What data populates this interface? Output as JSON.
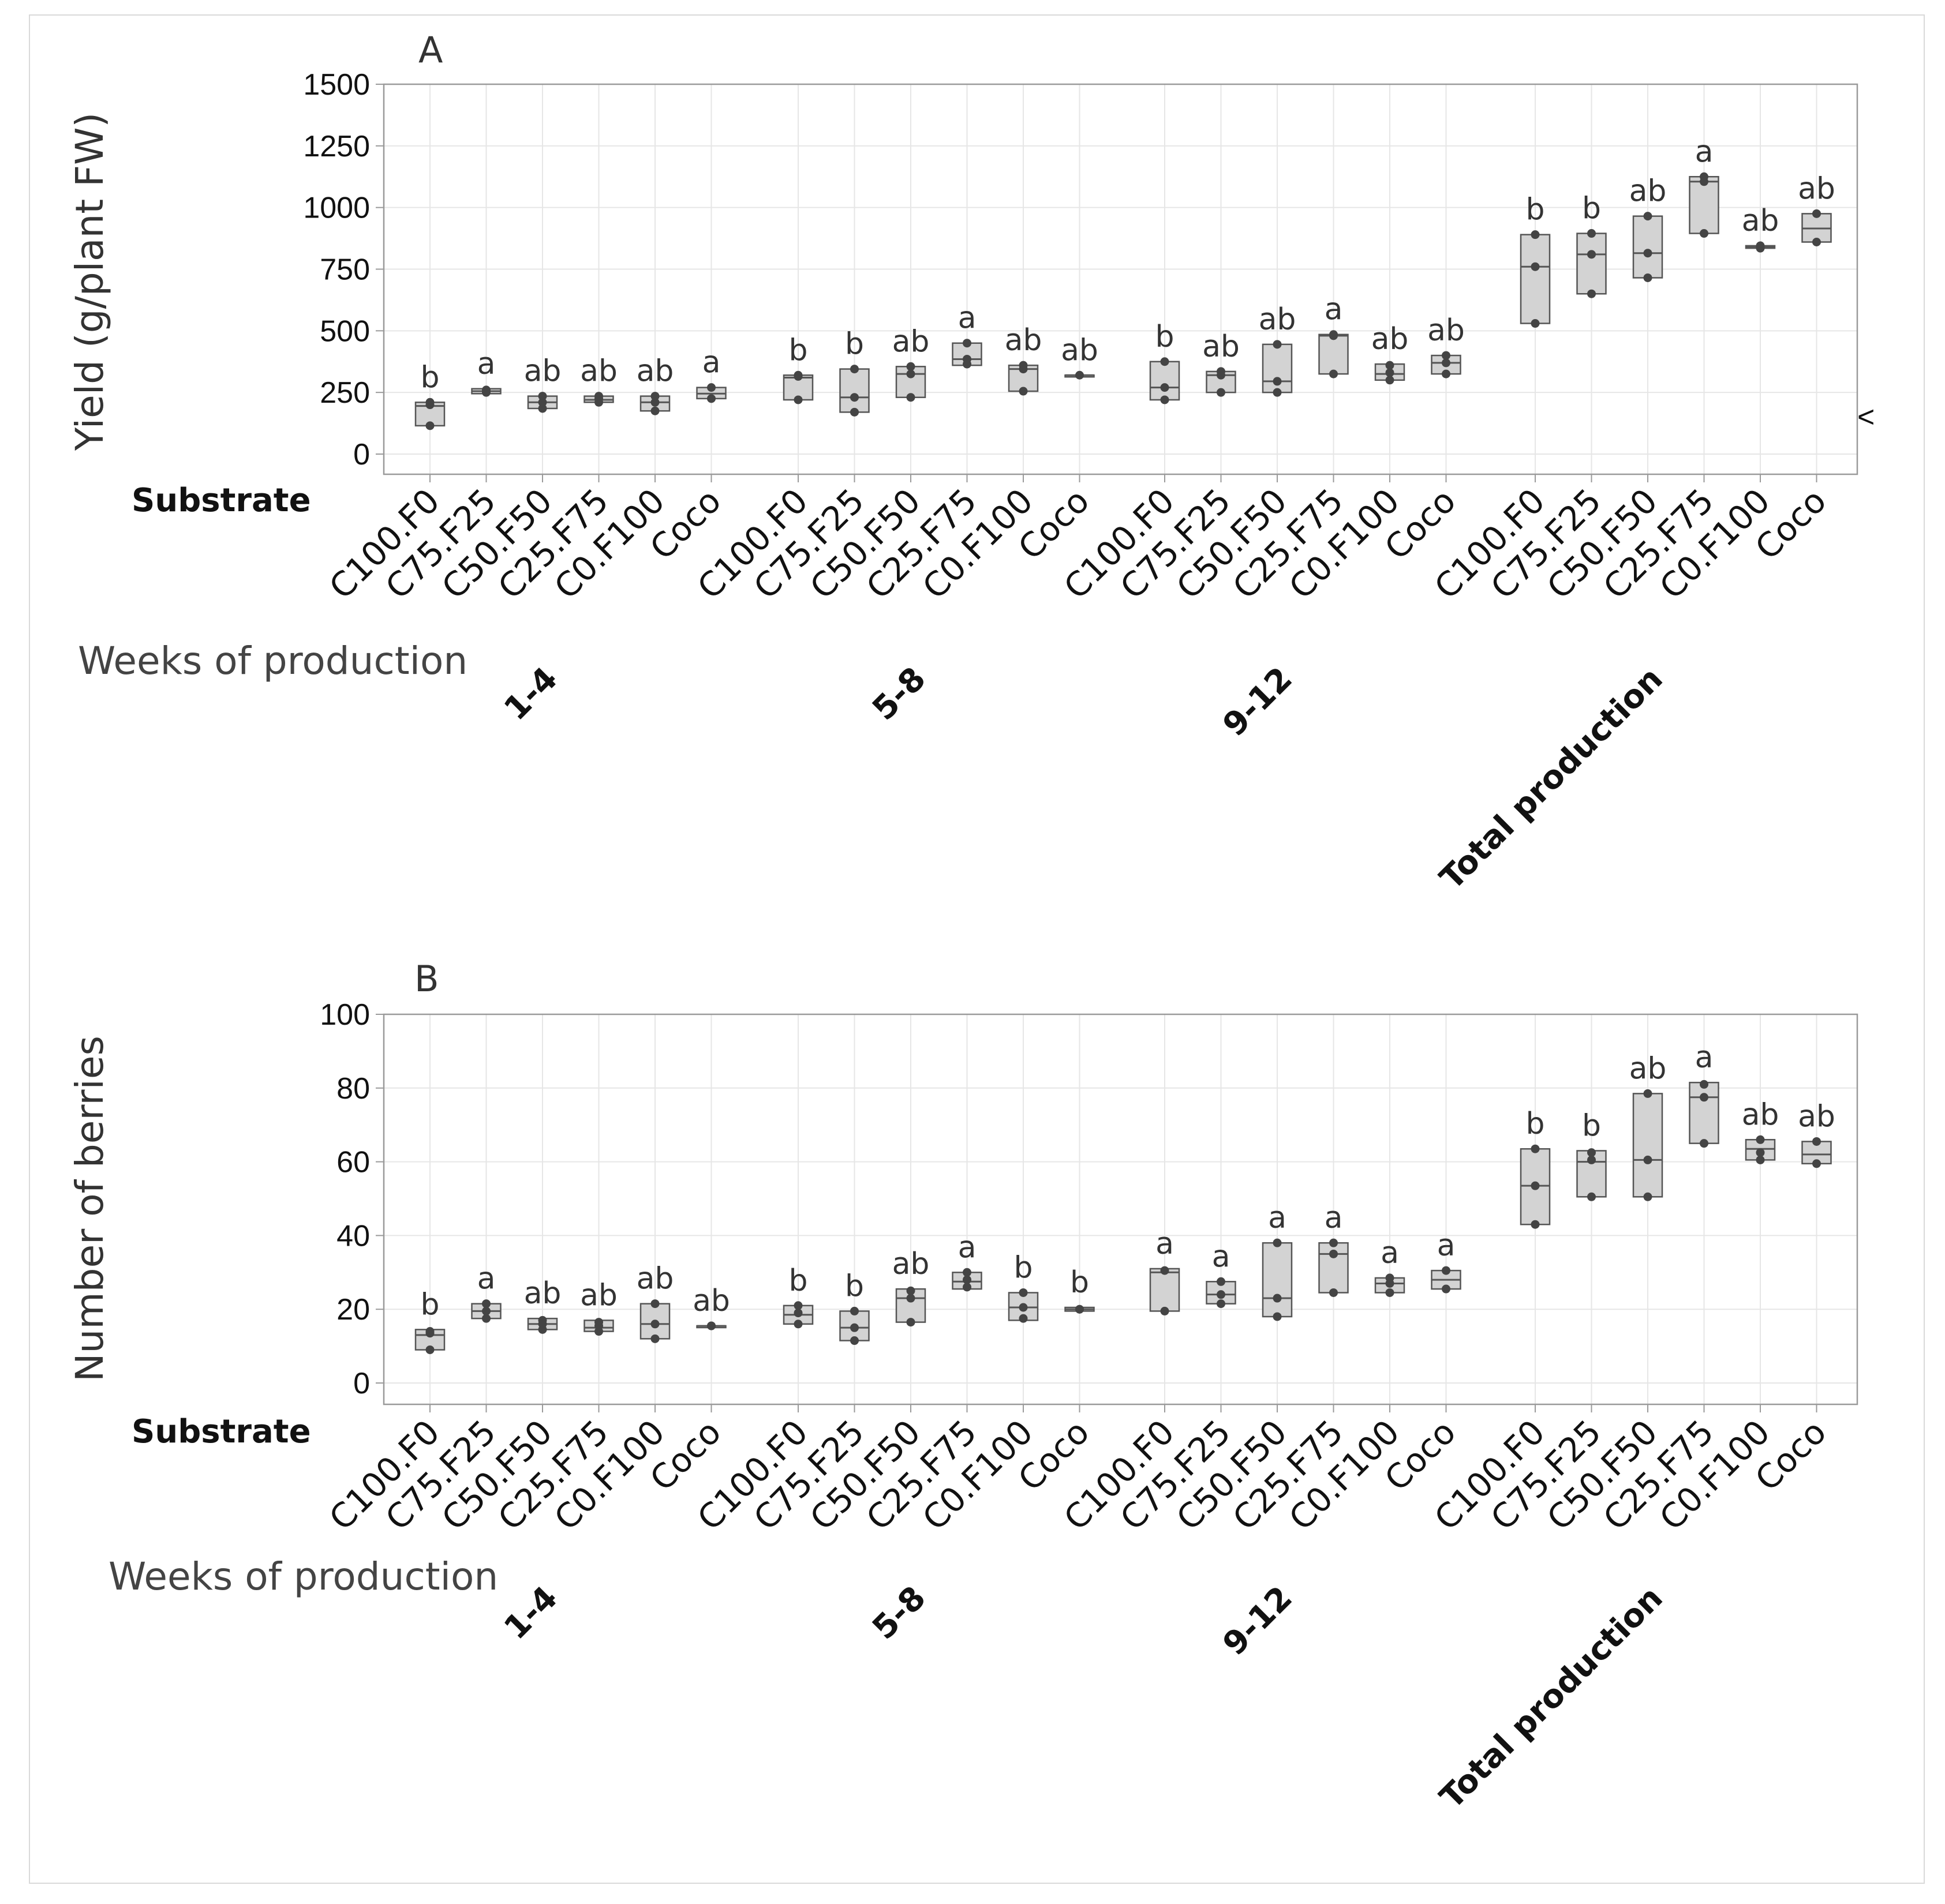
{
  "chart_data": [
    {
      "type": "box",
      "panel_label": "A",
      "ylabel": "Yield (g/plant FW)",
      "ylim": [
        -75,
        1500
      ],
      "yticks": [
        0,
        250,
        500,
        750,
        1000,
        1250,
        1500
      ],
      "ytick_labels": [
        "0",
        "250",
        "500",
        "750",
        "1000",
        "1250",
        "1500"
      ],
      "grid": true,
      "x_title": "Substrate",
      "group_title": "Weeks of production",
      "categories": [
        "C100.F0",
        "C75.F25",
        "C50.F50",
        "C25.F75",
        "C0.F100",
        "Coco"
      ],
      "groups": [
        {
          "name": "1-4",
          "boxes": [
            {
              "q1": 115,
              "median": 195,
              "q3": 210,
              "points": [
                115,
                200,
                210
              ],
              "letter": "b"
            },
            {
              "q1": 245,
              "median": 255,
              "q3": 265,
              "points": [
                250,
                255,
                260
              ],
              "letter": "a"
            },
            {
              "q1": 185,
              "median": 210,
              "q3": 235,
              "points": [
                185,
                210,
                235
              ],
              "letter": "ab"
            },
            {
              "q1": 210,
              "median": 220,
              "q3": 235,
              "points": [
                210,
                225,
                235
              ],
              "letter": "ab"
            },
            {
              "q1": 175,
              "median": 210,
              "q3": 235,
              "points": [
                175,
                210,
                235
              ],
              "letter": "ab"
            },
            {
              "q1": 225,
              "median": 245,
              "q3": 270,
              "points": [
                225,
                270
              ],
              "letter": "a"
            }
          ]
        },
        {
          "name": "5-8",
          "boxes": [
            {
              "q1": 220,
              "median": 310,
              "q3": 320,
              "points": [
                220,
                315,
                320
              ],
              "letter": "b"
            },
            {
              "q1": 170,
              "median": 230,
              "q3": 345,
              "points": [
                170,
                230,
                345
              ],
              "letter": "b"
            },
            {
              "q1": 230,
              "median": 325,
              "q3": 355,
              "points": [
                230,
                325,
                355
              ],
              "letter": "ab"
            },
            {
              "q1": 360,
              "median": 385,
              "q3": 450,
              "points": [
                365,
                385,
                450
              ],
              "letter": "a"
            },
            {
              "q1": 255,
              "median": 345,
              "q3": 360,
              "points": [
                255,
                345,
                360
              ],
              "letter": "ab"
            },
            {
              "q1": 320,
              "median": 320,
              "q3": 320,
              "points": [
                320
              ],
              "letter": "ab"
            }
          ]
        },
        {
          "name": "9-12",
          "boxes": [
            {
              "q1": 220,
              "median": 270,
              "q3": 375,
              "points": [
                220,
                270,
                375
              ],
              "letter": "b"
            },
            {
              "q1": 250,
              "median": 320,
              "q3": 335,
              "points": [
                250,
                320,
                335
              ],
              "letter": "ab"
            },
            {
              "q1": 250,
              "median": 295,
              "q3": 445,
              "points": [
                250,
                295,
                445
              ],
              "letter": "ab"
            },
            {
              "q1": 325,
              "median": 480,
              "q3": 485,
              "points": [
                325,
                480,
                485
              ],
              "letter": "a"
            },
            {
              "q1": 300,
              "median": 325,
              "q3": 365,
              "points": [
                300,
                330,
                360
              ],
              "letter": "ab"
            },
            {
              "q1": 325,
              "median": 370,
              "q3": 400,
              "points": [
                325,
                370,
                400
              ],
              "letter": "ab"
            }
          ]
        },
        {
          "name": "Total production",
          "boxes": [
            {
              "q1": 530,
              "median": 760,
              "q3": 890,
              "points": [
                530,
                760,
                890
              ],
              "letter": "b"
            },
            {
              "q1": 650,
              "median": 810,
              "q3": 895,
              "points": [
                650,
                810,
                895
              ],
              "letter": "b"
            },
            {
              "q1": 715,
              "median": 815,
              "q3": 965,
              "points": [
                715,
                815,
                965
              ],
              "letter": "ab"
            },
            {
              "q1": 895,
              "median": 1105,
              "q3": 1125,
              "points": [
                895,
                1105,
                1125
              ],
              "letter": "a"
            },
            {
              "q1": 835,
              "median": 840,
              "q3": 845,
              "points": [
                835,
                840,
                845
              ],
              "letter": "ab"
            },
            {
              "q1": 860,
              "median": 915,
              "q3": 975,
              "points": [
                860,
                975
              ],
              "letter": "ab"
            }
          ]
        }
      ]
    },
    {
      "type": "box",
      "panel_label": "B",
      "ylabel": "Number of berries",
      "ylim": [
        -6,
        100
      ],
      "yticks": [
        0,
        20,
        40,
        60,
        80,
        100
      ],
      "ytick_labels": [
        "0",
        "20",
        "40",
        "60",
        "80",
        "100"
      ],
      "grid": true,
      "x_title": "Substrate",
      "group_title": "Weeks of production",
      "categories": [
        "C100.F0",
        "C75.F25",
        "C50.F50",
        "C25.F75",
        "C0.F100",
        "Coco"
      ],
      "groups": [
        {
          "name": "1-4",
          "boxes": [
            {
              "q1": 9,
              "median": 13,
              "q3": 14.5,
              "points": [
                9,
                13.5,
                14
              ],
              "letter": "b"
            },
            {
              "q1": 17.5,
              "median": 19.5,
              "q3": 21.5,
              "points": [
                17.5,
                19.5,
                21.5
              ],
              "letter": "a"
            },
            {
              "q1": 14.5,
              "median": 16,
              "q3": 17.5,
              "points": [
                14.5,
                16,
                17
              ],
              "letter": "ab"
            },
            {
              "q1": 14,
              "median": 15,
              "q3": 17,
              "points": [
                14,
                15.5,
                16.5
              ],
              "letter": "ab"
            },
            {
              "q1": 12,
              "median": 16,
              "q3": 21.5,
              "points": [
                12,
                16,
                21.5
              ],
              "letter": "ab"
            },
            {
              "q1": 15.5,
              "median": 15.5,
              "q3": 15.5,
              "points": [
                15.5,
                15.5
              ],
              "letter": "ab"
            }
          ]
        },
        {
          "name": "5-8",
          "boxes": [
            {
              "q1": 16,
              "median": 18.5,
              "q3": 21,
              "points": [
                16,
                19,
                21
              ],
              "letter": "b"
            },
            {
              "q1": 11.5,
              "median": 15,
              "q3": 19.5,
              "points": [
                11.5,
                15,
                19.5
              ],
              "letter": "b"
            },
            {
              "q1": 16.5,
              "median": 23,
              "q3": 25.5,
              "points": [
                16.5,
                23,
                25
              ],
              "letter": "ab"
            },
            {
              "q1": 25.5,
              "median": 27.5,
              "q3": 30,
              "points": [
                26,
                28,
                30
              ],
              "letter": "a"
            },
            {
              "q1": 17,
              "median": 20.5,
              "q3": 24.5,
              "points": [
                17.5,
                20.5,
                24.5
              ],
              "letter": "b"
            },
            {
              "q1": 19.5,
              "median": 20,
              "q3": 20.5,
              "points": [
                20,
                20
              ],
              "letter": "b"
            }
          ]
        },
        {
          "name": "9-12",
          "boxes": [
            {
              "q1": 19.5,
              "median": 30,
              "q3": 31,
              "points": [
                19.5,
                30.5
              ],
              "letter": "a"
            },
            {
              "q1": 21.5,
              "median": 24,
              "q3": 27.5,
              "points": [
                21.5,
                24,
                27.5
              ],
              "letter": "a"
            },
            {
              "q1": 18,
              "median": 23,
              "q3": 38,
              "points": [
                18,
                23,
                38
              ],
              "letter": "a"
            },
            {
              "q1": 24.5,
              "median": 35,
              "q3": 38,
              "points": [
                24.5,
                35,
                38
              ],
              "letter": "a"
            },
            {
              "q1": 24.5,
              "median": 27,
              "q3": 28.5,
              "points": [
                24.5,
                27,
                28.5
              ],
              "letter": "a"
            },
            {
              "q1": 25.5,
              "median": 28,
              "q3": 30.5,
              "points": [
                25.5,
                30.5
              ],
              "letter": "a"
            }
          ]
        },
        {
          "name": "Total production",
          "boxes": [
            {
              "q1": 43,
              "median": 53.5,
              "q3": 63.5,
              "points": [
                43,
                53.5,
                63.5
              ],
              "letter": "b"
            },
            {
              "q1": 50.5,
              "median": 60,
              "q3": 63,
              "points": [
                50.5,
                60.5,
                62.5
              ],
              "letter": "b"
            },
            {
              "q1": 50.5,
              "median": 60.5,
              "q3": 78.5,
              "points": [
                50.5,
                60.5,
                78.5
              ],
              "letter": "ab"
            },
            {
              "q1": 65,
              "median": 77.5,
              "q3": 81.5,
              "points": [
                65,
                77.5,
                81
              ],
              "letter": "a"
            },
            {
              "q1": 60.5,
              "median": 63.5,
              "q3": 66,
              "points": [
                60.5,
                62.5,
                66
              ],
              "letter": "ab"
            },
            {
              "q1": 59.5,
              "median": 62,
              "q3": 65.5,
              "points": [
                59.5,
                65.5
              ],
              "letter": "ab"
            }
          ]
        }
      ]
    }
  ],
  "marker_glyph": "<",
  "colors": {
    "box_fill": "#d3d3d3",
    "box_stroke": "#555555",
    "point": "#444444",
    "grid": "#e6e6e6",
    "axis": "#9a9a9a",
    "frame": "#d9d9d9"
  }
}
